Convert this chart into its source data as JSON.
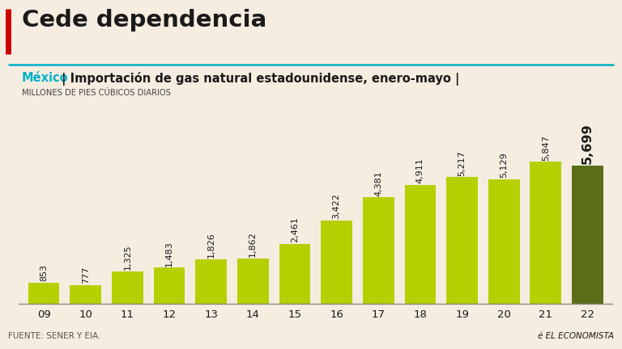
{
  "title": "Cede dependencia",
  "subtitle_mexico": "México",
  "subtitle_rest": " | Importación de gas natural estadounidense, enero-mayo |",
  "unit_label": "MILLONES DE PIES CÚBICOS DIARIOS",
  "categories": [
    "09",
    "10",
    "11",
    "12",
    "13",
    "14",
    "15",
    "16",
    "17",
    "18",
    "19",
    "20",
    "21",
    "22"
  ],
  "values": [
    853,
    777,
    1325,
    1483,
    1826,
    1862,
    2461,
    3422,
    4381,
    4911,
    5217,
    5129,
    5847,
    5699
  ],
  "bar_color_normal": "#b5d000",
  "bar_color_last": "#5a6e1a",
  "background_color": "#f5ede0",
  "title_color": "#1a1a1a",
  "accent_line_color": "#00b0c8",
  "mexico_label_color": "#00b0c8",
  "value_fontsize": 8.0,
  "last_value_fontsize": 11.5,
  "source_text": "FUENTE: SENER Y EIA.",
  "logo_text": "EL ECONOMISTA",
  "red_accent_color": "#cc0000",
  "ylim": [
    0,
    7200
  ]
}
